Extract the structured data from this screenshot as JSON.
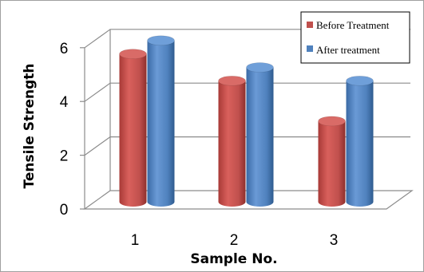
{
  "chart_data": {
    "type": "bar",
    "subtype": "3d-cylinder",
    "categories": [
      "1",
      "2",
      "3"
    ],
    "series": [
      {
        "name": "Before Treatment",
        "color": "#c0504d",
        "values": [
          5.5,
          4.5,
          3.0
        ]
      },
      {
        "name": "After treatment",
        "color": "#4f81bd",
        "values": [
          6.0,
          5.0,
          4.5
        ]
      }
    ],
    "xlabel": "Sample No.",
    "ylabel": "Tensile Strength",
    "yticks": [
      "0",
      "2",
      "4",
      "6"
    ],
    "ylim": [
      0,
      6
    ],
    "grid": true,
    "legend_position": "top-right"
  }
}
